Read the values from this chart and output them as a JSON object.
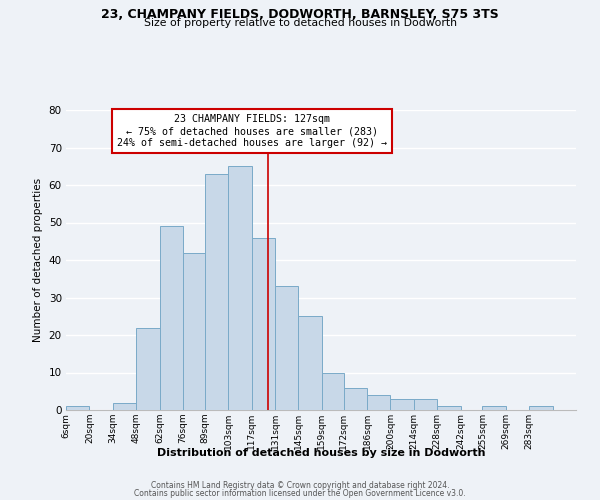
{
  "title": "23, CHAMPANY FIELDS, DODWORTH, BARNSLEY, S75 3TS",
  "subtitle": "Size of property relative to detached houses in Dodworth",
  "xlabel": "Distribution of detached houses by size in Dodworth",
  "ylabel": "Number of detached properties",
  "bar_color": "#c8d8e8",
  "bar_edge_color": "#7aaac8",
  "bin_labels": [
    "6sqm",
    "20sqm",
    "34sqm",
    "48sqm",
    "62sqm",
    "76sqm",
    "89sqm",
    "103sqm",
    "117sqm",
    "131sqm",
    "145sqm",
    "159sqm",
    "172sqm",
    "186sqm",
    "200sqm",
    "214sqm",
    "228sqm",
    "242sqm",
    "255sqm",
    "269sqm",
    "283sqm"
  ],
  "bin_edges": [
    6,
    20,
    34,
    48,
    62,
    76,
    89,
    103,
    117,
    131,
    145,
    159,
    172,
    186,
    200,
    214,
    228,
    242,
    255,
    269,
    283,
    297
  ],
  "counts": [
    1,
    0,
    2,
    22,
    49,
    42,
    63,
    65,
    46,
    33,
    25,
    10,
    6,
    4,
    3,
    3,
    1,
    0,
    1,
    0,
    1
  ],
  "vline_x": 127,
  "vline_color": "#cc0000",
  "ylim": [
    0,
    80
  ],
  "yticks": [
    0,
    10,
    20,
    30,
    40,
    50,
    60,
    70,
    80
  ],
  "annotation_title": "23 CHAMPANY FIELDS: 127sqm",
  "annotation_line1": "← 75% of detached houses are smaller (283)",
  "annotation_line2": "24% of semi-detached houses are larger (92) →",
  "annotation_box_color": "#ffffff",
  "annotation_box_edge": "#cc0000",
  "footer_line1": "Contains HM Land Registry data © Crown copyright and database right 2024.",
  "footer_line2": "Contains public sector information licensed under the Open Government Licence v3.0.",
  "background_color": "#eef2f7",
  "grid_color": "#ffffff"
}
